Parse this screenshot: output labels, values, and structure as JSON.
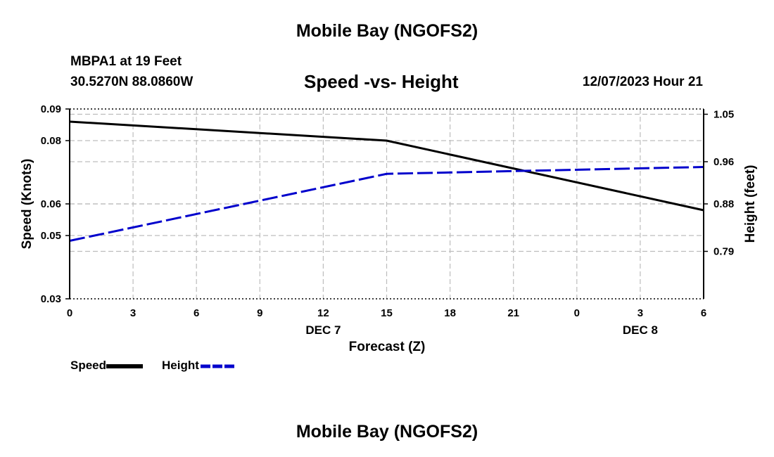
{
  "page": {
    "title_top": "Mobile Bay (NGOFS2)",
    "title_bottom": "Mobile Bay (NGOFS2)",
    "station": "MBPA1 at 19 Feet",
    "coords": "30.5270N  88.0860W",
    "timestamp": "12/07/2023 Hour 21"
  },
  "legend": {
    "speed_label": "Speed",
    "height_label": "Height"
  },
  "chart_data": {
    "type": "line",
    "title": "Speed -vs- Height",
    "xlabel": "Forecast (Z)",
    "ylabel": "Speed (Knots)",
    "ylabel_right": "Height (feet)",
    "x_hours": [
      0,
      3,
      6,
      9,
      12,
      15,
      18,
      21,
      24,
      27,
      30
    ],
    "x_tick_labels": [
      "0",
      "3",
      "6",
      "9",
      "12",
      "15",
      "18",
      "21",
      "0",
      "3",
      "6"
    ],
    "date_labels": [
      {
        "text": "DEC 7",
        "hour": 12
      },
      {
        "text": "DEC 8",
        "hour": 27
      }
    ],
    "xlim": [
      0,
      30
    ],
    "ylim": [
      0.03,
      0.09
    ],
    "y_ticks": [
      0.03,
      0.05,
      0.06,
      0.08,
      0.09
    ],
    "y_tick_labels": [
      "0.03",
      "0.05",
      "0.06",
      "0.08",
      "0.09"
    ],
    "ylim_right": [
      0.7,
      1.06
    ],
    "y_ticks_right": [
      0.79,
      0.88,
      0.96,
      1.05
    ],
    "y_tick_labels_right": [
      "0.79",
      "0.88",
      "0.96",
      "1.05"
    ],
    "grid": true,
    "series": [
      {
        "name": "Speed",
        "axis": "left",
        "color": "#000000",
        "dash": "solid",
        "x": [
          0,
          15,
          30
        ],
        "y": [
          0.086,
          0.08,
          0.058
        ]
      },
      {
        "name": "Height",
        "axis": "right",
        "color": "#0000cc",
        "dash": "dashed",
        "x": [
          0,
          15,
          30
        ],
        "y": [
          0.81,
          0.937,
          0.95
        ]
      }
    ]
  }
}
